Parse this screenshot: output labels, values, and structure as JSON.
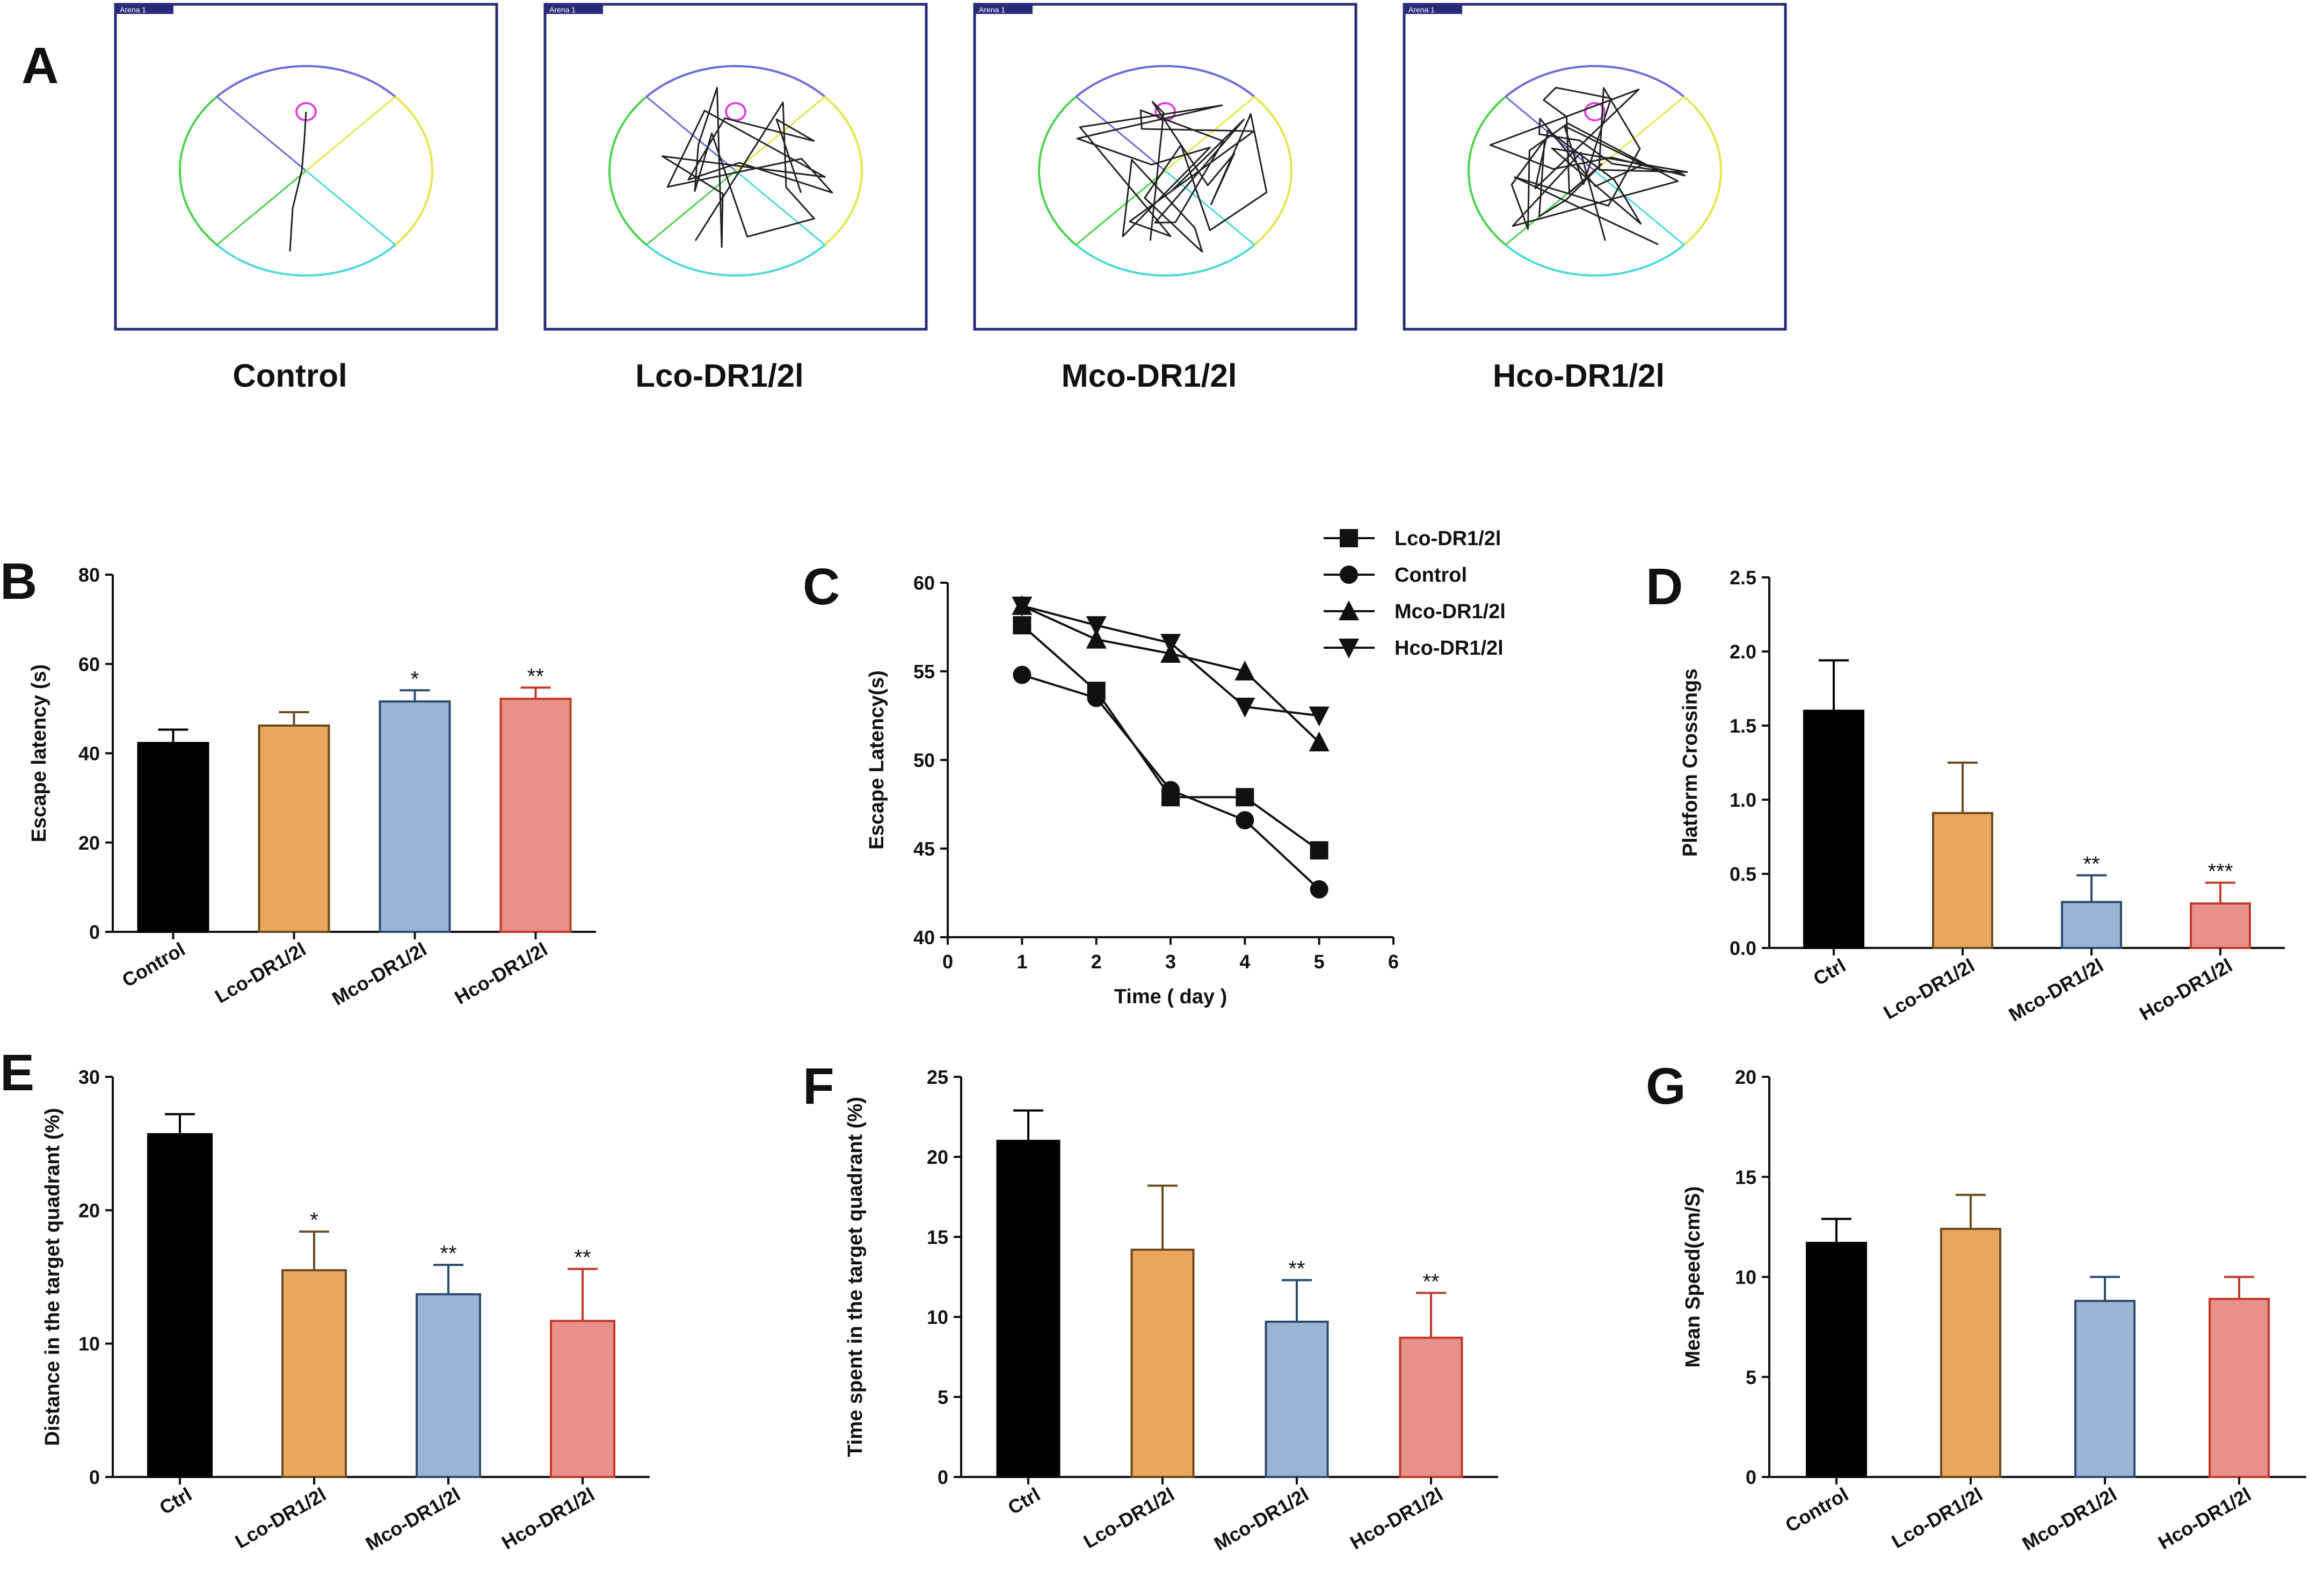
{
  "maze_panel": {
    "letter": "A",
    "arena_tag": "Arena 1",
    "groups": [
      "Control",
      "Lco-DR1/2l",
      "Mco-DR1/2l",
      "Hco-DR1/2l"
    ]
  },
  "colors": {
    "Control": "#000000",
    "Lco-DR1/2l": "#E8A75C",
    "Mco-DR1/2l": "#9BB4D4",
    "Hco-DR1/2l": "#E8908A",
    "Control_edge": "#000000",
    "Lco-DR1/2l_edge": "#6b4a1e",
    "Mco-DR1/2l_edge": "#2c4a6e",
    "Hco-DR1/2l_edge": "#c0392b",
    "arena_border": "#2a2a7a",
    "quadrant_top": "#6b6bd9",
    "quadrant_right": "#e6e64a",
    "quadrant_left": "#4bd24b",
    "quadrant_bottom": "#4ad9d9",
    "platform": "#e040e0"
  },
  "chart_data": [
    {
      "id": "B",
      "type": "bar",
      "letter": "B",
      "categories": [
        "Control",
        "Lco-DR1/2l",
        "Mco-DR1/2l",
        "Hco-DR1/2l"
      ],
      "values": [
        42.3,
        46.2,
        51.6,
        52.2
      ],
      "errors": [
        3.0,
        3.0,
        2.5,
        2.5
      ],
      "significance": [
        "",
        "",
        "*",
        "**"
      ],
      "ylabel": "Escape latency (s)",
      "xlabel": "",
      "ylim": [
        0,
        80
      ],
      "yticks": [
        0,
        20,
        40,
        60,
        80
      ]
    },
    {
      "id": "C",
      "type": "line",
      "letter": "C",
      "x": [
        1,
        2,
        3,
        4,
        5
      ],
      "series": [
        {
          "name": "Lco-DR1/2l",
          "marker": "square",
          "values": [
            57.6,
            53.9,
            47.9,
            47.9,
            44.9
          ]
        },
        {
          "name": "Control",
          "marker": "circle",
          "values": [
            54.8,
            53.5,
            48.3,
            46.6,
            42.7
          ]
        },
        {
          "name": "Mco-DR1/2l",
          "marker": "triangle-up",
          "values": [
            58.7,
            56.8,
            56.0,
            55.0,
            51.0
          ]
        },
        {
          "name": "Hco-DR1/2l",
          "marker": "triangle-down",
          "values": [
            58.7,
            57.6,
            56.6,
            53.0,
            52.5
          ]
        }
      ],
      "xlabel": "Time ( day )",
      "ylabel": "Escape Latency(s)",
      "xlim": [
        0,
        6
      ],
      "ylim": [
        40,
        60
      ],
      "xticks": [
        0,
        1,
        2,
        3,
        4,
        5,
        6
      ],
      "yticks": [
        40,
        45,
        50,
        55,
        60
      ],
      "legend": "top-right"
    },
    {
      "id": "D",
      "type": "bar",
      "letter": "D",
      "categories": [
        "Ctrl",
        "Lco-DR1/2l",
        "Mco-DR1/2l",
        "Hco-DR1/2l"
      ],
      "values": [
        1.6,
        0.91,
        0.31,
        0.3
      ],
      "errors": [
        0.34,
        0.34,
        0.18,
        0.14
      ],
      "significance": [
        "",
        "",
        "**",
        "***"
      ],
      "ylabel": "Platform Crossings",
      "xlabel": "",
      "ylim": [
        0,
        2.5
      ],
      "yticks": [
        0.0,
        0.5,
        1.0,
        1.5,
        2.0,
        2.5
      ],
      "tick_decimals": 1
    },
    {
      "id": "E",
      "type": "bar",
      "letter": "E",
      "categories": [
        "Ctrl",
        "Lco-DR1/2l",
        "Mco-DR1/2l",
        "Hco-DR1/2l"
      ],
      "values": [
        25.7,
        15.5,
        13.7,
        11.7
      ],
      "errors": [
        1.5,
        2.9,
        2.2,
        3.9
      ],
      "significance": [
        "",
        "*",
        "**",
        "**"
      ],
      "ylabel": "Distance in the target quadrant (%)",
      "xlabel": "",
      "ylim": [
        0,
        30
      ],
      "yticks": [
        0,
        10,
        20,
        30
      ]
    },
    {
      "id": "F",
      "type": "bar",
      "letter": "F",
      "categories": [
        "Ctrl",
        "Lco-DR1/2l",
        "Mco-DR1/2l",
        "Hco-DR1/2l"
      ],
      "values": [
        21.0,
        14.2,
        9.7,
        8.7
      ],
      "errors": [
        1.9,
        4.0,
        2.6,
        2.8
      ],
      "significance": [
        "",
        "",
        "**",
        "**"
      ],
      "ylabel": "Time spent in the target quadrant (%)",
      "xlabel": "",
      "ylim": [
        0,
        25
      ],
      "yticks": [
        0,
        5,
        10,
        15,
        20,
        25
      ]
    },
    {
      "id": "G",
      "type": "bar",
      "letter": "G",
      "categories": [
        "Control",
        "Lco-DR1/2l",
        "Mco-DR1/2l",
        "Hco-DR1/2l"
      ],
      "values": [
        11.7,
        12.4,
        8.8,
        8.9
      ],
      "errors": [
        1.2,
        1.7,
        1.2,
        1.1
      ],
      "significance": [
        "",
        "",
        "",
        ""
      ],
      "ylabel": "Mean Speed(cm/S)",
      "xlabel": "",
      "ylim": [
        0,
        20
      ],
      "yticks": [
        0,
        5,
        10,
        15,
        20
      ]
    }
  ]
}
